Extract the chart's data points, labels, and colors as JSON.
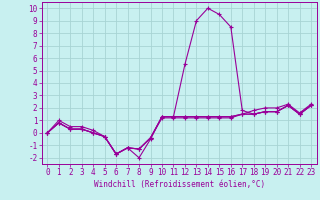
{
  "xlabel": "Windchill (Refroidissement éolien,°C)",
  "background_color": "#c8f0f0",
  "grid_color": "#a8d4d4",
  "line_color": "#990099",
  "marker": "+",
  "xlim": [
    -0.5,
    23.5
  ],
  "ylim": [
    -2.5,
    10.5
  ],
  "yticks": [
    -2,
    -1,
    0,
    1,
    2,
    3,
    4,
    5,
    6,
    7,
    8,
    9,
    10
  ],
  "xticks": [
    0,
    1,
    2,
    3,
    4,
    5,
    6,
    7,
    8,
    9,
    10,
    11,
    12,
    13,
    14,
    15,
    16,
    17,
    18,
    19,
    20,
    21,
    22,
    23
  ],
  "series": [
    [
      0.0,
      1.0,
      0.5,
      0.5,
      0.2,
      -0.3,
      -1.7,
      -1.2,
      -1.3,
      -0.4,
      1.2,
      1.2,
      1.2,
      1.2,
      1.2,
      1.2,
      1.2,
      1.5,
      1.5,
      1.7,
      1.7,
      2.2,
      1.5,
      2.2
    ],
    [
      0.0,
      0.8,
      0.3,
      0.3,
      0.0,
      -0.3,
      -1.7,
      -1.2,
      -1.3,
      -0.4,
      1.3,
      1.3,
      1.3,
      1.3,
      1.3,
      1.3,
      1.3,
      1.5,
      1.5,
      1.7,
      1.7,
      2.2,
      1.5,
      2.2
    ],
    [
      0.0,
      0.8,
      0.3,
      0.3,
      0.0,
      -0.3,
      -1.7,
      -1.2,
      -1.3,
      -0.4,
      1.3,
      1.3,
      5.5,
      9.0,
      10.0,
      9.5,
      8.5,
      1.8,
      1.5,
      1.7,
      1.7,
      2.2,
      1.5,
      2.2
    ],
    [
      0.0,
      0.8,
      0.3,
      0.3,
      0.0,
      -0.3,
      -1.7,
      -1.2,
      -2.0,
      -0.5,
      1.3,
      1.3,
      1.3,
      1.3,
      1.3,
      1.3,
      1.3,
      1.5,
      1.8,
      2.0,
      2.0,
      2.3,
      1.6,
      2.3
    ]
  ],
  "xlabel_fontsize": 5.5,
  "tick_fontsize": 5.5
}
